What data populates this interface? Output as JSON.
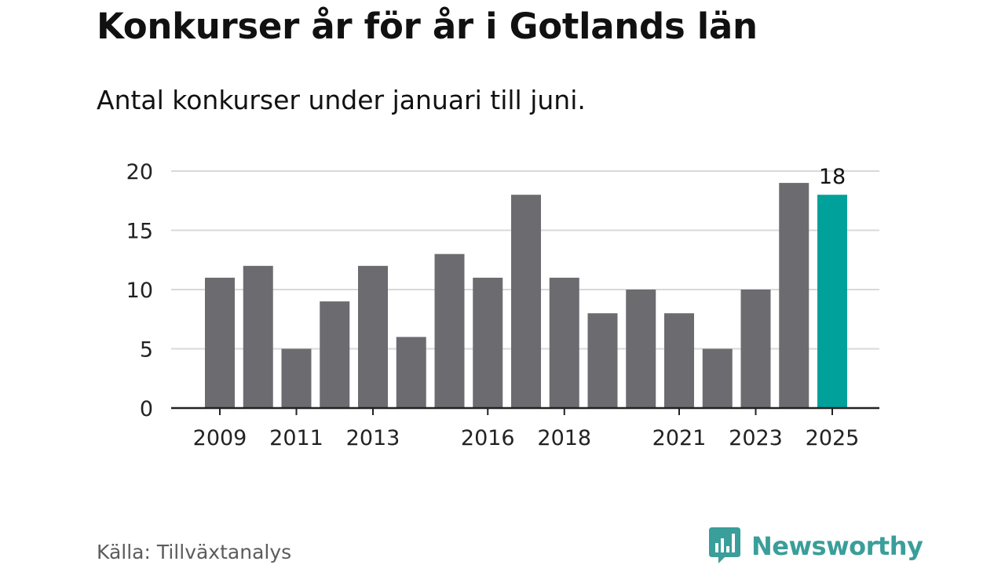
{
  "title": "Konkurser år för år i Gotlands län",
  "subtitle": "Antal konkurser under januari till juni.",
  "source": "Källa: Tillväxtanalys",
  "brand": {
    "name": "Newsworthy",
    "icon": "bar-chart-speech-bubble-icon",
    "color": "#3a9e9a"
  },
  "colors": {
    "bar": "#6c6b70",
    "highlight": "#00a19a",
    "grid": "#d9d9d9",
    "axis": "#222222"
  },
  "chart_data": {
    "type": "bar",
    "title": "Konkurser år för år i Gotlands län",
    "subtitle": "Antal konkurser under januari till juni.",
    "xlabel": "",
    "ylabel": "",
    "categories": [
      "2009",
      "2010",
      "2011",
      "2012",
      "2013",
      "2014",
      "2015",
      "2016",
      "2017",
      "2018",
      "2019",
      "2020",
      "2021",
      "2022",
      "2023",
      "2024",
      "2025"
    ],
    "values": [
      11,
      12,
      5,
      9,
      12,
      6,
      13,
      11,
      18,
      11,
      8,
      10,
      8,
      5,
      10,
      19,
      18
    ],
    "highlight_index": 16,
    "data_labels": [
      {
        "index": 16,
        "text": "18"
      }
    ],
    "x_tick_labels": [
      "2009",
      "2011",
      "2013",
      "2016",
      "2018",
      "2021",
      "2023",
      "2025"
    ],
    "y_ticks": [
      0,
      5,
      10,
      15,
      20
    ],
    "ylim": [
      0,
      20
    ],
    "grid": true,
    "legend": "none"
  }
}
